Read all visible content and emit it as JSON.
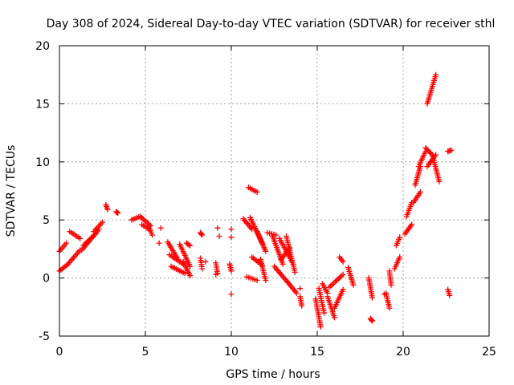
{
  "chart_data": {
    "type": "scatter",
    "title": "Day 308 of 2024, Sidereal Day-to-day VTEC variation (SDTVAR) for receiver sthl",
    "xlabel": "GPS time / hours",
    "ylabel": "SDTVAR / TECUs",
    "xlim": [
      0,
      25
    ],
    "ylim": [
      -5,
      20
    ],
    "xticks": [
      0,
      5,
      10,
      15,
      20,
      25
    ],
    "yticks": [
      -5,
      0,
      5,
      10,
      15,
      20
    ],
    "xtick_labels": [
      "0",
      "5",
      "10",
      "15",
      "20",
      "25"
    ],
    "ytick_labels": [
      "-5",
      "0",
      "5",
      "10",
      "15",
      "20"
    ],
    "grid": true,
    "marker": "plus",
    "color": "#ff0000",
    "segments": [
      {
        "x0": 0.0,
        "x1": 0.5,
        "y0": 0.6,
        "y1": 1.2
      },
      {
        "x0": 0.0,
        "x1": 0.4,
        "y0": 2.3,
        "y1": 3.0
      },
      {
        "x0": 0.5,
        "x1": 1.2,
        "y0": 1.2,
        "y1": 2.4
      },
      {
        "x0": 0.6,
        "x1": 1.2,
        "y0": 4.0,
        "y1": 3.4
      },
      {
        "x0": 1.3,
        "x1": 2.3,
        "y0": 2.4,
        "y1": 4.2
      },
      {
        "x0": 1.4,
        "x1": 2.1,
        "y0": 2.8,
        "y1": 3.8
      },
      {
        "x0": 2.0,
        "x1": 2.5,
        "y0": 4.0,
        "y1": 4.8
      },
      {
        "x0": 2.7,
        "x1": 2.8,
        "y0": 6.3,
        "y1": 5.9
      },
      {
        "x0": 3.3,
        "x1": 3.4,
        "y0": 5.7,
        "y1": 5.6
      },
      {
        "x0": 4.2,
        "x1": 4.7,
        "y0": 5.0,
        "y1": 5.3
      },
      {
        "x0": 4.7,
        "x1": 5.3,
        "y0": 5.3,
        "y1": 4.5
      },
      {
        "x0": 4.8,
        "x1": 5.2,
        "y0": 4.6,
        "y1": 4.2
      },
      {
        "x0": 5.2,
        "x1": 5.4,
        "y0": 4.4,
        "y1": 3.7
      },
      {
        "x0": 6.3,
        "x1": 6.9,
        "y0": 3.1,
        "y1": 1.6
      },
      {
        "x0": 6.4,
        "x1": 7.2,
        "y0": 2.0,
        "y1": 1.2
      },
      {
        "x0": 6.5,
        "x1": 7.3,
        "y0": 1.0,
        "y1": 0.4
      },
      {
        "x0": 7.0,
        "x1": 7.6,
        "y0": 2.9,
        "y1": 1.0
      },
      {
        "x0": 7.2,
        "x1": 7.6,
        "y0": 1.4,
        "y1": 0.2
      },
      {
        "x0": 7.4,
        "x1": 7.6,
        "y0": 3.0,
        "y1": 2.8
      },
      {
        "x0": 8.2,
        "x1": 8.3,
        "y0": 1.7,
        "y1": 0.8
      },
      {
        "x0": 8.2,
        "x1": 8.3,
        "y0": 3.9,
        "y1": 3.7
      },
      {
        "x0": 9.1,
        "x1": 9.2,
        "y0": 1.3,
        "y1": 0.4
      },
      {
        "x0": 9.9,
        "x1": 10.0,
        "y0": 1.2,
        "y1": 0.6
      },
      {
        "x0": 10.7,
        "x1": 11.2,
        "y0": 5.1,
        "y1": 4.2
      },
      {
        "x0": 10.9,
        "x1": 11.5,
        "y0": 0.1,
        "y1": -0.2
      },
      {
        "x0": 11.0,
        "x1": 11.5,
        "y0": 7.8,
        "y1": 7.4
      },
      {
        "x0": 11.1,
        "x1": 11.8,
        "y0": 5.2,
        "y1": 3.0
      },
      {
        "x0": 11.2,
        "x1": 11.8,
        "y0": 1.8,
        "y1": 1.1
      },
      {
        "x0": 11.5,
        "x1": 12.0,
        "y0": 4.0,
        "y1": 2.3
      },
      {
        "x0": 11.7,
        "x1": 12.0,
        "y0": 1.6,
        "y1": -0.2
      },
      {
        "x0": 12.1,
        "x1": 12.6,
        "y0": 3.9,
        "y1": 3.7
      },
      {
        "x0": 12.4,
        "x1": 13.0,
        "y0": 3.6,
        "y1": 1.2
      },
      {
        "x0": 12.5,
        "x1": 13.3,
        "y0": 1.0,
        "y1": -0.4
      },
      {
        "x0": 12.8,
        "x1": 13.6,
        "y0": 3.4,
        "y1": 1.2
      },
      {
        "x0": 12.9,
        "x1": 13.4,
        "y0": 1.6,
        "y1": 2.6
      },
      {
        "x0": 13.2,
        "x1": 13.7,
        "y0": 3.6,
        "y1": 0.5
      },
      {
        "x0": 13.3,
        "x1": 13.8,
        "y0": -0.4,
        "y1": -1.3
      },
      {
        "x0": 14.0,
        "x1": 14.1,
        "y0": -1.6,
        "y1": -2.4
      },
      {
        "x0": 14.9,
        "x1": 15.2,
        "y0": -1.8,
        "y1": -4.2
      },
      {
        "x0": 15.1,
        "x1": 15.4,
        "y0": -0.9,
        "y1": -3.0
      },
      {
        "x0": 15.3,
        "x1": 15.6,
        "y0": -0.5,
        "y1": -1.3
      },
      {
        "x0": 15.6,
        "x1": 16.0,
        "y0": -1.6,
        "y1": -3.4
      },
      {
        "x0": 15.7,
        "x1": 16.5,
        "y0": -0.8,
        "y1": 0.3
      },
      {
        "x0": 16.0,
        "x1": 16.5,
        "y0": -2.6,
        "y1": -1.0
      },
      {
        "x0": 16.3,
        "x1": 16.5,
        "y0": 1.8,
        "y1": 1.4
      },
      {
        "x0": 16.8,
        "x1": 17.1,
        "y0": 0.9,
        "y1": -0.6
      },
      {
        "x0": 18.0,
        "x1": 18.2,
        "y0": 0.0,
        "y1": -1.7
      },
      {
        "x0": 18.1,
        "x1": 18.2,
        "y0": -3.5,
        "y1": -3.7
      },
      {
        "x0": 19.0,
        "x1": 19.2,
        "y0": -1.3,
        "y1": -2.6
      },
      {
        "x0": 19.2,
        "x1": 19.3,
        "y0": 0.6,
        "y1": -0.6
      },
      {
        "x0": 19.5,
        "x1": 19.8,
        "y0": 0.8,
        "y1": 1.8
      },
      {
        "x0": 19.6,
        "x1": 19.8,
        "y0": 2.8,
        "y1": 3.5
      },
      {
        "x0": 20.1,
        "x1": 20.5,
        "y0": 3.8,
        "y1": 4.6
      },
      {
        "x0": 20.2,
        "x1": 20.5,
        "y0": 5.3,
        "y1": 6.5
      },
      {
        "x0": 20.6,
        "x1": 21.0,
        "y0": 6.5,
        "y1": 7.4
      },
      {
        "x0": 20.7,
        "x1": 21.0,
        "y0": 8.0,
        "y1": 9.6
      },
      {
        "x0": 20.9,
        "x1": 21.3,
        "y0": 9.6,
        "y1": 10.9
      },
      {
        "x0": 21.3,
        "x1": 21.7,
        "y0": 11.2,
        "y1": 10.6
      },
      {
        "x0": 21.4,
        "x1": 21.9,
        "y0": 9.6,
        "y1": 10.6
      },
      {
        "x0": 21.7,
        "x1": 22.1,
        "y0": 10.6,
        "y1": 8.3
      },
      {
        "x0": 21.4,
        "x1": 21.9,
        "y0": 15.0,
        "y1": 17.5
      },
      {
        "x0": 22.6,
        "x1": 22.8,
        "y0": 10.9,
        "y1": 11.0
      },
      {
        "x0": 22.6,
        "x1": 22.7,
        "y0": -1.0,
        "y1": -1.5
      }
    ],
    "isolated_points": [
      {
        "x": 5.8,
        "y": 3.0
      },
      {
        "x": 5.9,
        "y": 4.3
      },
      {
        "x": 8.5,
        "y": 1.4
      },
      {
        "x": 9.2,
        "y": 4.3
      },
      {
        "x": 9.3,
        "y": 3.6
      },
      {
        "x": 10.0,
        "y": -1.4
      },
      {
        "x": 10.0,
        "y": 4.2
      },
      {
        "x": 10.0,
        "y": 3.5
      },
      {
        "x": 14.0,
        "y": -0.9
      },
      {
        "x": 18.9,
        "y": -1.4
      },
      {
        "x": 9.1,
        "y": 0.3
      }
    ]
  }
}
